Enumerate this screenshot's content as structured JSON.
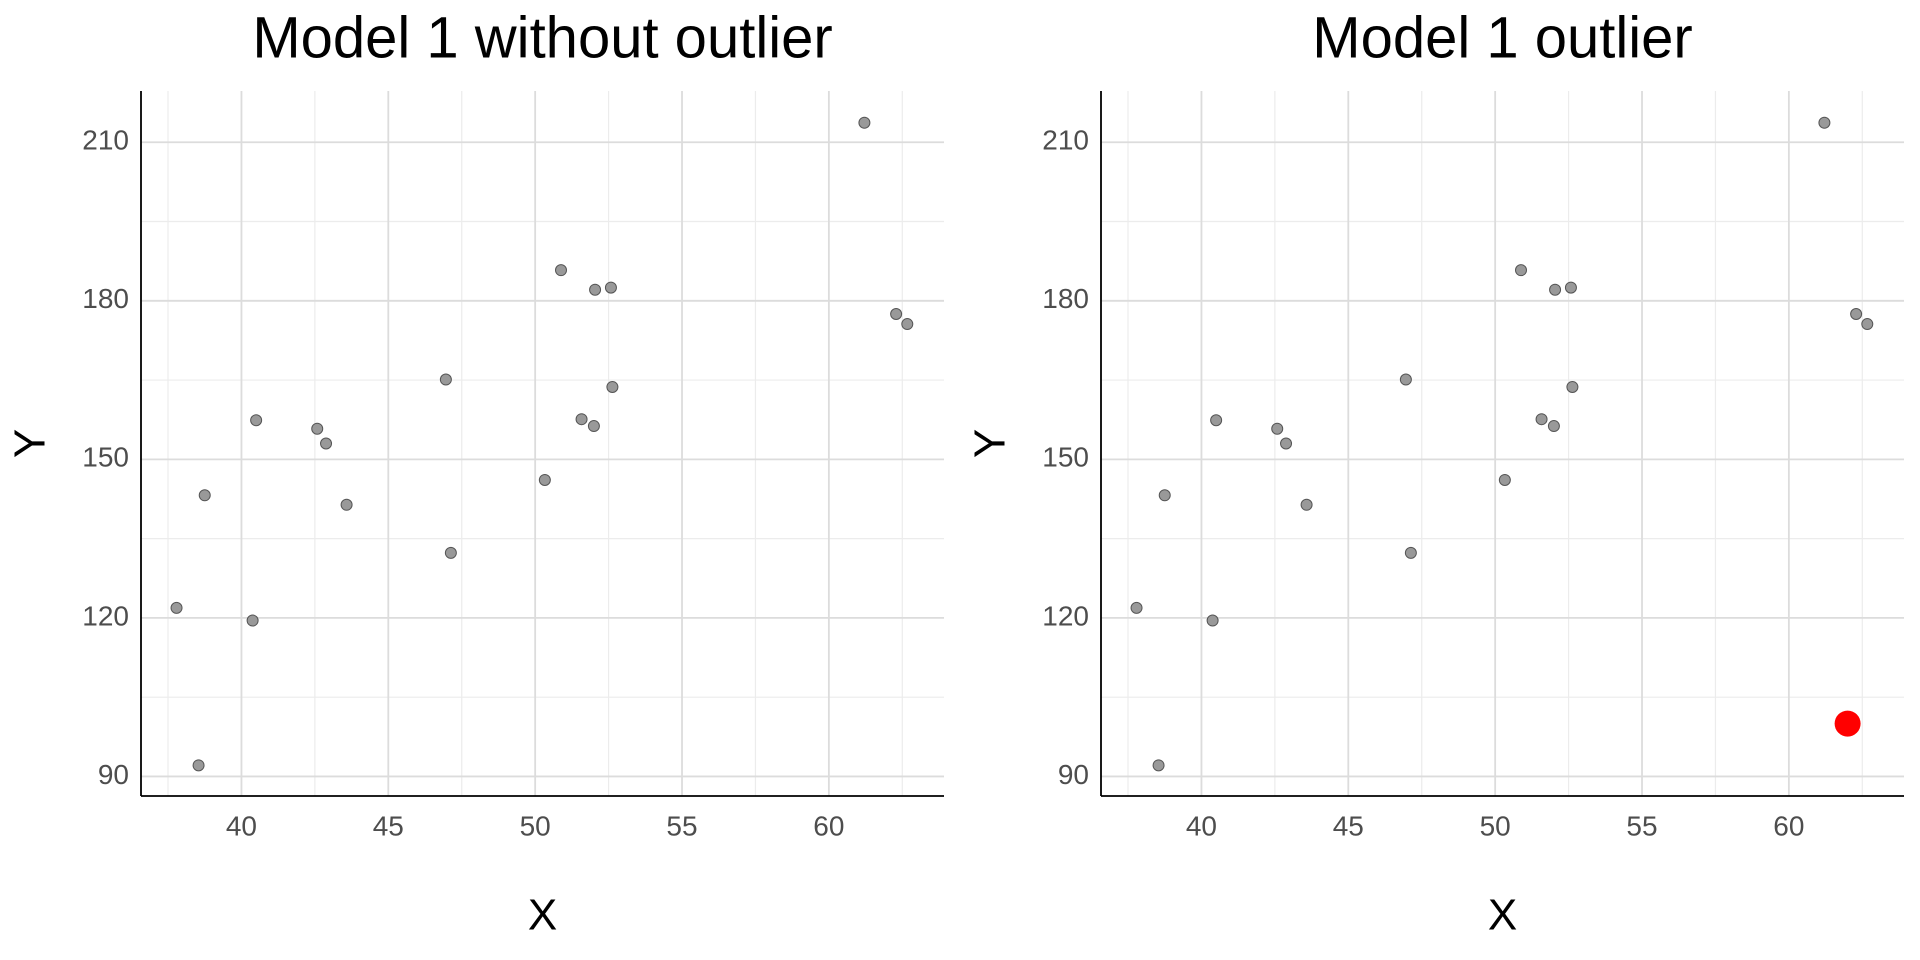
{
  "chart_data": [
    {
      "type": "scatter",
      "title": "Model 1 without outlier",
      "x_label": "X",
      "y_label": "Y",
      "x": [
        37.79,
        38.54,
        38.75,
        40.38,
        40.5,
        42.58,
        42.88,
        43.58,
        46.96,
        47.13,
        50.33,
        50.88,
        51.58,
        52.04,
        52.0,
        52.58,
        52.63,
        61.21,
        62.29,
        62.67
      ],
      "y": [
        121.9,
        92.1,
        143.2,
        119.5,
        157.4,
        155.8,
        153.0,
        141.4,
        165.1,
        132.3,
        146.1,
        185.8,
        157.6,
        182.1,
        156.3,
        182.5,
        163.7,
        213.7,
        177.5,
        175.6
      ],
      "color": "#999999",
      "xlim": [
        36.58,
        63.92
      ],
      "ylim": [
        86.3,
        219.7
      ],
      "xticks": [
        40,
        45,
        50,
        55,
        60
      ],
      "yticks": [
        90,
        120,
        150,
        180,
        210
      ],
      "grid": true
    },
    {
      "type": "scatter",
      "title": "Model 1 outlier",
      "x_label": "X",
      "y_label": "Y",
      "x": [
        37.79,
        38.54,
        38.75,
        40.38,
        40.5,
        42.58,
        42.88,
        43.58,
        46.96,
        47.13,
        50.33,
        50.88,
        51.58,
        52.04,
        52.0,
        52.58,
        52.63,
        61.21,
        62.29,
        62.67
      ],
      "y": [
        121.9,
        92.1,
        143.2,
        119.5,
        157.4,
        155.8,
        153.0,
        141.4,
        165.1,
        132.3,
        146.1,
        185.8,
        157.6,
        182.1,
        156.3,
        182.5,
        163.7,
        213.7,
        177.5,
        175.6
      ],
      "color": "#999999",
      "highlight": {
        "x": [
          62
        ],
        "y": [
          100
        ],
        "color": "#ff0000"
      },
      "xlim": [
        36.58,
        63.92
      ],
      "ylim": [
        86.3,
        219.7
      ],
      "xticks": [
        40,
        45,
        50,
        55,
        60
      ],
      "yticks": [
        90,
        120,
        150,
        180,
        210
      ],
      "grid": true
    }
  ]
}
